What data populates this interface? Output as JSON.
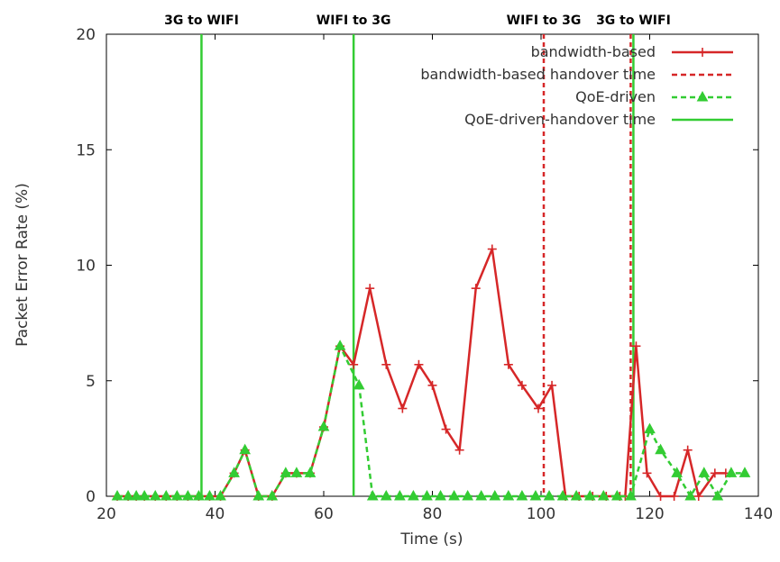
{
  "chart_data": {
    "type": "line",
    "title": "",
    "xlabel": "Time (s)",
    "ylabel": "Packet Error Rate (%)",
    "xlim": [
      20,
      140
    ],
    "ylim": [
      0,
      20
    ],
    "xticks": [
      20,
      40,
      60,
      80,
      100,
      120,
      140
    ],
    "yticks": [
      0,
      5,
      10,
      15,
      20
    ],
    "grid": false,
    "legend_position": "top-right",
    "series": [
      {
        "name": "bandwidth-based",
        "color": "#d62728",
        "marker": "plus",
        "line": "solid",
        "x": [
          22,
          24,
          25.5,
          27,
          29,
          31,
          33,
          35,
          37,
          39,
          41,
          43.5,
          45.5,
          48,
          50.5,
          53,
          55,
          57.5,
          60,
          63,
          65.5,
          68.5,
          71.5,
          74.5,
          77.5,
          80,
          82.5,
          85,
          88,
          91,
          94,
          96.5,
          99.5,
          102,
          104.5,
          107,
          109.5,
          112,
          114.5,
          115.5,
          117.5,
          119.5,
          122,
          124.5,
          127,
          129,
          132,
          134
        ],
        "y": [
          0,
          0,
          0,
          0,
          0,
          0,
          0,
          0,
          0,
          0,
          0,
          1,
          2,
          0,
          0,
          1,
          1,
          1,
          3,
          6.5,
          5.7,
          9,
          5.7,
          3.8,
          5.7,
          4.8,
          2.9,
          2,
          9,
          10.7,
          5.7,
          4.8,
          3.8,
          4.8,
          0,
          0,
          0,
          0,
          0,
          0,
          6.5,
          1,
          0,
          0,
          2,
          0,
          1,
          1
        ]
      },
      {
        "name": "bandwidth-based handover time",
        "color": "#d62728",
        "line": "dashed",
        "x": [
          100.5,
          116.5
        ],
        "y": [
          0,
          0
        ]
      },
      {
        "name": "QoE-driven",
        "color": "#33cc33",
        "marker": "triangle",
        "line": "dashed",
        "x": [
          22,
          24,
          25.5,
          27,
          29,
          31,
          33,
          35,
          37,
          39,
          41,
          43.5,
          45.5,
          48,
          50.5,
          53,
          55,
          57.5,
          60,
          63,
          66.5,
          69,
          71.5,
          74,
          76.5,
          79,
          81.5,
          84,
          86.5,
          89,
          91.5,
          94,
          96.5,
          99,
          101.5,
          104,
          106.5,
          109,
          111.5,
          114,
          116.5,
          120,
          122,
          125,
          127.5,
          130,
          132.5,
          135,
          137.5
        ],
        "y": [
          0,
          0,
          0,
          0,
          0,
          0,
          0,
          0,
          0,
          0,
          0,
          1,
          2,
          0,
          0,
          1,
          1,
          1,
          3,
          6.5,
          4.8,
          0,
          0,
          0,
          0,
          0,
          0,
          0,
          0,
          0,
          0,
          0,
          0,
          0,
          0,
          0,
          0,
          0,
          0,
          0,
          0,
          2.9,
          2,
          1,
          0,
          1,
          0,
          1,
          1
        ]
      },
      {
        "name": "QoE-driven-handover time",
        "color": "#33cc33",
        "line": "solid",
        "x": [
          37.5,
          65.5,
          117
        ],
        "y": [
          0,
          0,
          0
        ]
      }
    ],
    "annotations": [
      {
        "text": "3G to WIFI",
        "x": 37.5
      },
      {
        "text": "WIFI to 3G",
        "x": 65.5
      },
      {
        "text": "WIFI to 3G",
        "x": 100.5
      },
      {
        "text": "3G to WIFI",
        "x": 117
      }
    ]
  }
}
